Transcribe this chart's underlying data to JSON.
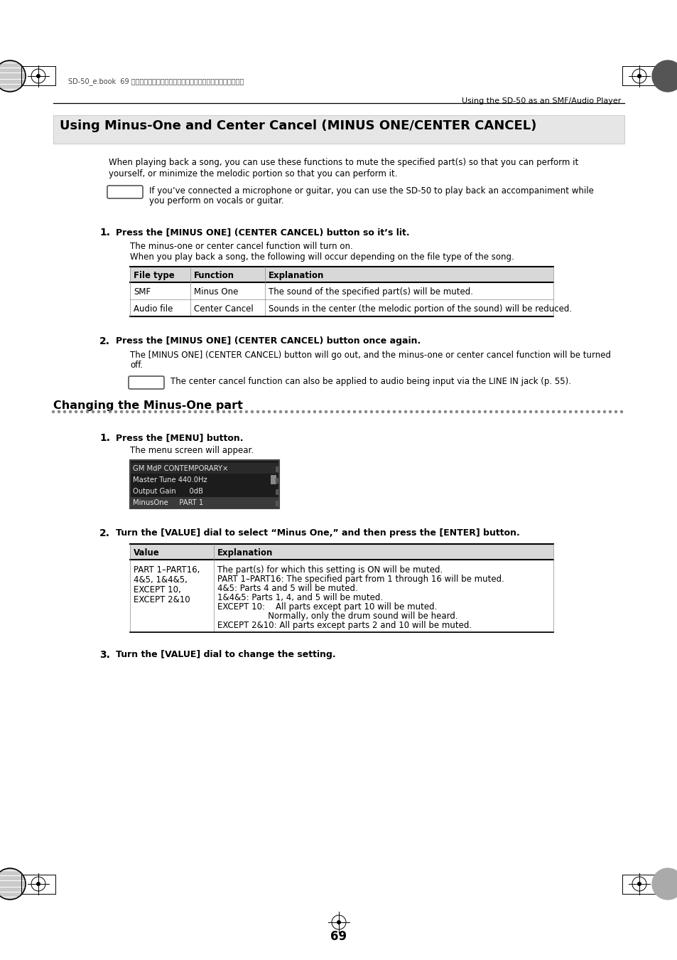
{
  "page_num": "69",
  "header_text": "Using the SD-50 as an SMF/Audio Player",
  "file_info": "SD-50_e.book  69 ページ　２０１０年１月２５日　月曜日　午前１０晎５２分",
  "section_title": "Using Minus-One and Center Cancel (MINUS ONE/CENTER CANCEL)",
  "intro_line1": "When playing back a song, you can use these functions to mute the specified part(s) so that you can perform it",
  "intro_line2": "yourself, or minimize the melodic portion so that you can perform it.",
  "memo1_text1": "If you’ve connected a microphone or guitar, you can use the SD-50 to play back an accompaniment while",
  "memo1_text2": "you perform on vocals or guitar.",
  "step1_title": "Press the [MINUS ONE] (CENTER CANCEL) button so it’s lit.",
  "step1_text1": "The minus-one or center cancel function will turn on.",
  "step1_text2": "When you play back a song, the following will occur depending on the file type of the song.",
  "table1_headers": [
    "File type",
    "Function",
    "Explanation"
  ],
  "table1_rows": [
    [
      "SMF",
      "Minus One",
      "The sound of the specified part(s) will be muted."
    ],
    [
      "Audio file",
      "Center Cancel",
      "Sounds in the center (the melodic portion of the sound) will be reduced."
    ]
  ],
  "step2_title": "Press the [MINUS ONE] (CENTER CANCEL) button once again.",
  "step2_text1": "The [MINUS ONE] (CENTER CANCEL) button will go out, and the minus-one or center cancel function will be turned",
  "step2_text2": "off.",
  "memo2_text": "The center cancel function can also be applied to audio being input via the LINE IN jack (p. 55).",
  "section2_title": "Changing the Minus-One part",
  "step3_title": "Press the [MENU] button.",
  "step3_text": "The menu screen will appear.",
  "lcd_lines": [
    "GM MdP CONTEMPORARY×",
    "Master Tune 440.0Hz",
    "Output Gain      0dB",
    "MinusOne     PART 1"
  ],
  "step4_title": "Turn the [VALUE] dial to select “Minus One,” and then press the [ENTER] button.",
  "table2_headers": [
    "Value",
    "Explanation"
  ],
  "table2_col1_lines": [
    "PART 1–PART16,",
    "4&5, 1&4&5,",
    "EXCEPT 10,",
    "EXCEPT 2&10"
  ],
  "table2_expl_lines": [
    "The part(s) for which this setting is ON will be muted.",
    "PART 1–PART16: The specified part from 1 through 16 will be muted.",
    "4&5: Parts 4 and 5 will be muted.",
    "1&4&5: Parts 1, 4, and 5 will be muted.",
    "EXCEPT 10:    All parts except part 10 will be muted.",
    "                   Normally, only the drum sound will be heard.",
    "EXCEPT 2&10: All parts except parts 2 and 10 will be muted."
  ],
  "step5_title": "Turn the [VALUE] dial to change the setting.",
  "bg_color": "#ffffff"
}
